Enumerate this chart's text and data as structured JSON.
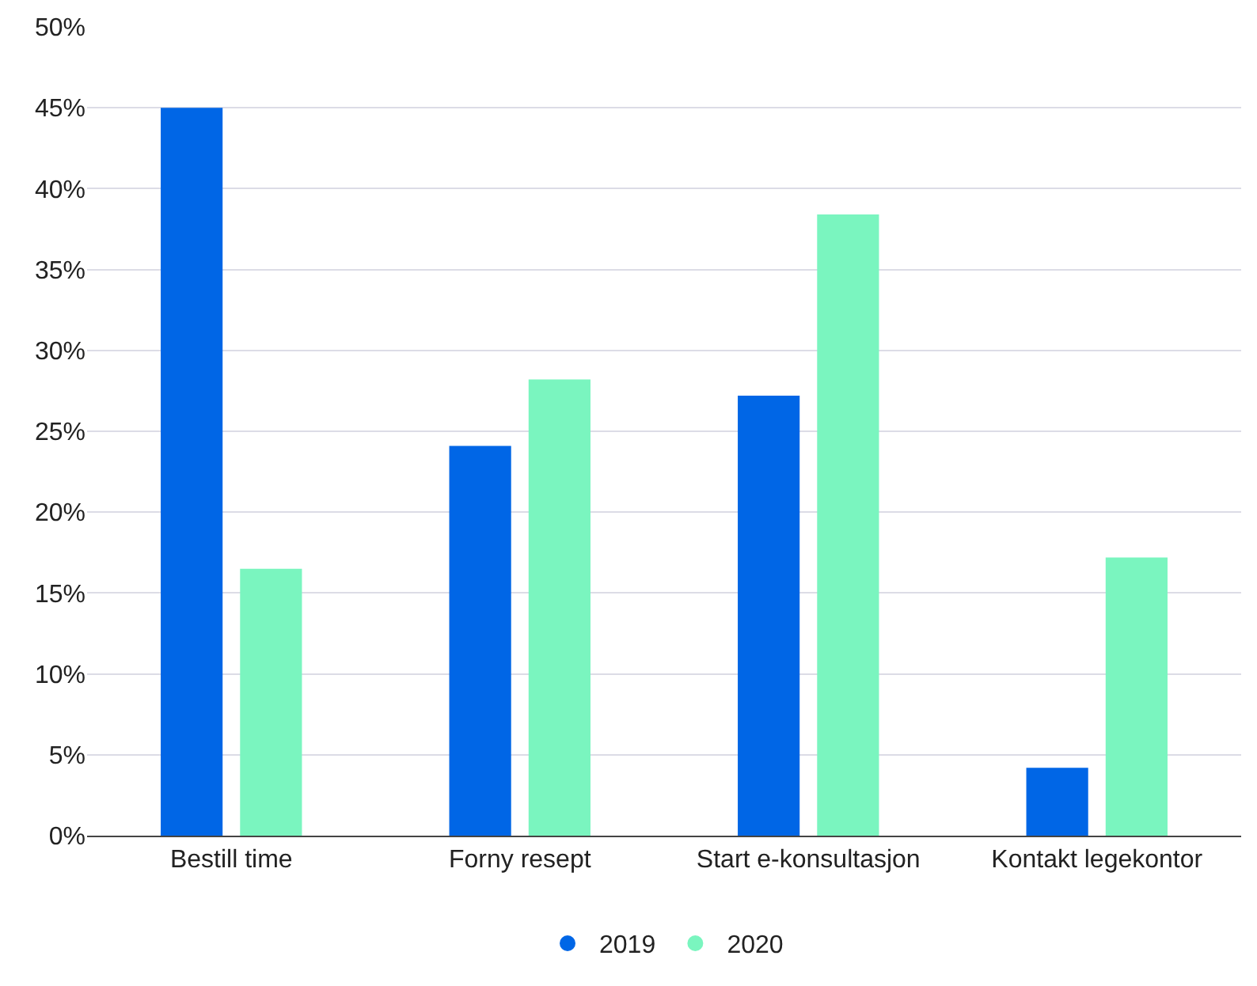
{
  "chart_data": {
    "type": "bar",
    "categories": [
      "Bestill time",
      "Forny resept",
      "Start e-konsultasjon",
      "Kontakt legekontor"
    ],
    "series": [
      {
        "name": "2019",
        "color": "#0066e6",
        "values": [
          45,
          24.1,
          27.2,
          4.2
        ]
      },
      {
        "name": "2020",
        "color": "#7af5bf",
        "values": [
          16.5,
          28.2,
          38.4,
          17.2
        ]
      }
    ],
    "ylim": [
      0,
      50
    ],
    "yticks": [
      {
        "value": 0,
        "label": "0%"
      },
      {
        "value": 5,
        "label": "5%"
      },
      {
        "value": 10,
        "label": "10%"
      },
      {
        "value": 15,
        "label": "15%"
      },
      {
        "value": 20,
        "label": "20%"
      },
      {
        "value": 25,
        "label": "25%"
      },
      {
        "value": 30,
        "label": "30%"
      },
      {
        "value": 35,
        "label": "35%"
      },
      {
        "value": 40,
        "label": "40%"
      },
      {
        "value": 45,
        "label": "45%"
      },
      {
        "value": 50,
        "label": "50%"
      }
    ],
    "grid": "y",
    "legend": "bottom",
    "marker": "circle"
  }
}
